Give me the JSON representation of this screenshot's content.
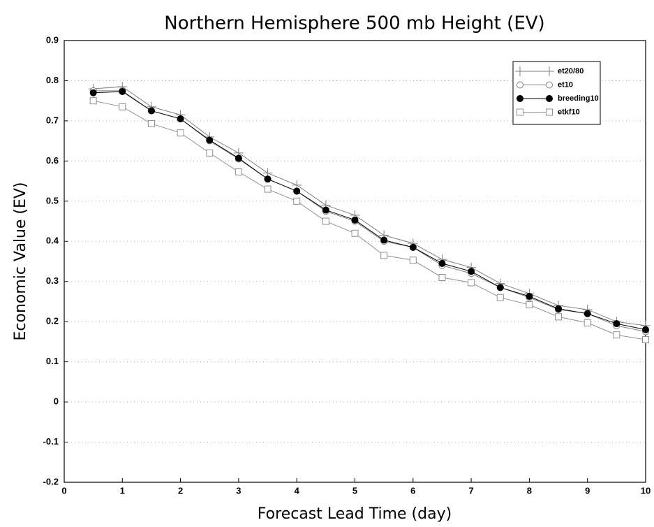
{
  "chart_data": {
    "type": "line",
    "title": "Northern Hemisphere 500 mb Height (EV)",
    "x_label": "Forecast Lead Time (day)",
    "y_label": "Economic Value (EV)",
    "x": [
      0.5,
      1,
      1.5,
      2,
      2.5,
      3,
      3.5,
      4,
      4.5,
      5,
      5.5,
      6,
      6.5,
      7,
      7.5,
      8,
      8.5,
      9,
      9.5,
      10
    ],
    "series": [
      {
        "name": "et20/80",
        "color": "#808080",
        "marker": "plus",
        "values": [
          0.78,
          0.785,
          0.735,
          0.715,
          0.66,
          0.62,
          0.57,
          0.54,
          0.49,
          0.465,
          0.415,
          0.395,
          0.355,
          0.335,
          0.295,
          0.27,
          0.24,
          0.23,
          0.2,
          0.19
        ]
      },
      {
        "name": "et10",
        "color": "#808080",
        "marker": "circle",
        "values": [
          0.775,
          0.775,
          0.725,
          0.705,
          0.65,
          0.605,
          0.555,
          0.525,
          0.475,
          0.45,
          0.4,
          0.385,
          0.34,
          0.32,
          0.285,
          0.26,
          0.23,
          0.22,
          0.19,
          0.175
        ]
      },
      {
        "name": "breeding10",
        "color": "#000000",
        "marker": "filled-circle",
        "values": [
          0.77,
          0.773,
          0.725,
          0.705,
          0.652,
          0.607,
          0.555,
          0.525,
          0.478,
          0.453,
          0.403,
          0.385,
          0.345,
          0.325,
          0.285,
          0.263,
          0.232,
          0.22,
          0.195,
          0.18
        ]
      },
      {
        "name": "etkf10",
        "color": "#909090",
        "marker": "square",
        "values": [
          0.75,
          0.735,
          0.693,
          0.67,
          0.62,
          0.573,
          0.53,
          0.5,
          0.45,
          0.42,
          0.365,
          0.353,
          0.31,
          0.297,
          0.26,
          0.242,
          0.212,
          0.197,
          0.167,
          0.155
        ]
      }
    ],
    "xlim": [
      0,
      10
    ],
    "xticks": [
      0,
      1,
      2,
      3,
      4,
      5,
      6,
      7,
      8,
      9,
      10
    ],
    "ylim": [
      -0.2,
      0.9
    ],
    "yticks": [
      -0.2,
      -0.1,
      0,
      0.1,
      0.2,
      0.3,
      0.4,
      0.5,
      0.6,
      0.7,
      0.8,
      0.9
    ],
    "grid": true,
    "legend": "upper right"
  }
}
